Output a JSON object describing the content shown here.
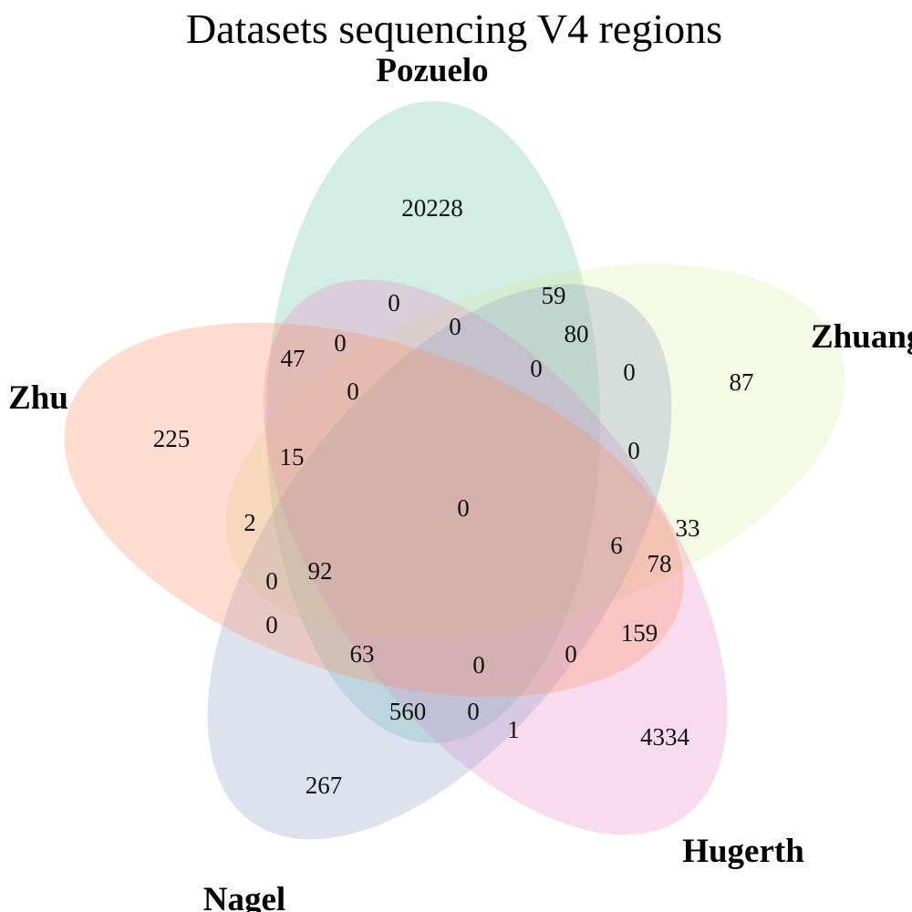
{
  "title": "Datasets sequencing V4 regions",
  "sets": [
    {
      "name": "Pozuelo",
      "color": "#66c2a5"
    },
    {
      "name": "Zhuang",
      "color": "#d9f0a3"
    },
    {
      "name": "Hugerth",
      "color": "#e78ac3"
    },
    {
      "name": "Nagel",
      "color": "#8da0cb"
    },
    {
      "name": "Zhu",
      "color": "#fc8d62"
    }
  ],
  "regions": [
    {
      "id": "pozuelo-only",
      "value": "20228"
    },
    {
      "id": "zhuang-only",
      "value": "87"
    },
    {
      "id": "hugerth-only",
      "value": "4334"
    },
    {
      "id": "nagel-only",
      "value": "267"
    },
    {
      "id": "zhu-only",
      "value": "225"
    },
    {
      "id": "r-0-a",
      "value": "0"
    },
    {
      "id": "r-59",
      "value": "59"
    },
    {
      "id": "r-0-b",
      "value": "0"
    },
    {
      "id": "r-80",
      "value": "80"
    },
    {
      "id": "r-0-c",
      "value": "0"
    },
    {
      "id": "r-0-d",
      "value": "0"
    },
    {
      "id": "r-47",
      "value": "47"
    },
    {
      "id": "r-0-e",
      "value": "0"
    },
    {
      "id": "r-0-f",
      "value": "0"
    },
    {
      "id": "r-0-g",
      "value": "0"
    },
    {
      "id": "r-15",
      "value": "15"
    },
    {
      "id": "r-2",
      "value": "2"
    },
    {
      "id": "r-all",
      "value": "0"
    },
    {
      "id": "r-6",
      "value": "6"
    },
    {
      "id": "r-33",
      "value": "33"
    },
    {
      "id": "r-78",
      "value": "78"
    },
    {
      "id": "r-0-h",
      "value": "0"
    },
    {
      "id": "r-92",
      "value": "92"
    },
    {
      "id": "r-0-i",
      "value": "0"
    },
    {
      "id": "r-159",
      "value": "159"
    },
    {
      "id": "r-63",
      "value": "63"
    },
    {
      "id": "r-0-j",
      "value": "0"
    },
    {
      "id": "r-0-k",
      "value": "0"
    },
    {
      "id": "r-560",
      "value": "560"
    },
    {
      "id": "r-0-l",
      "value": "0"
    },
    {
      "id": "r-1",
      "value": "1"
    }
  ]
}
